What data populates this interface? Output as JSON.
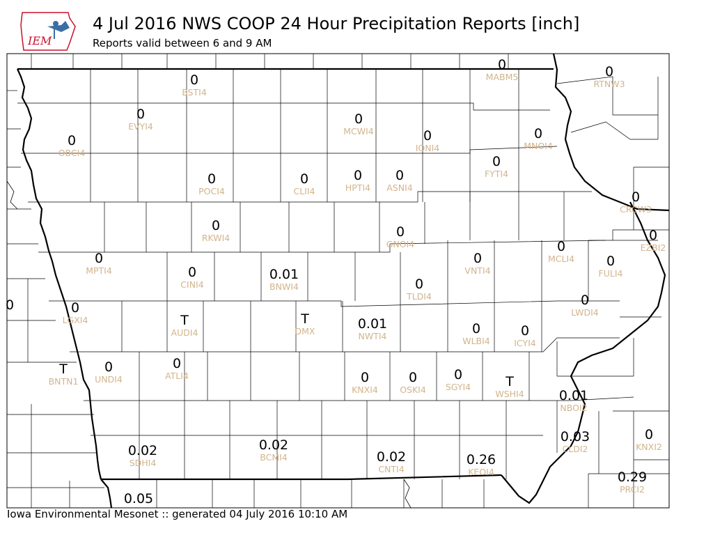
{
  "header": {
    "title": "4 Jul 2016 NWS COOP 24 Hour Precipitation Reports [inch]",
    "subtitle": "Reports valid between 6 and 9 AM"
  },
  "logo": {
    "text": "IEM"
  },
  "footer": "Iowa Environmental Mesonet :: generated 04 July 2016 10:10 AM",
  "stations": [
    {
      "id": "BSTI4",
      "value": "0"
    },
    {
      "id": "MABM5",
      "value": "0"
    },
    {
      "id": "RTNW3",
      "value": "0"
    },
    {
      "id": "EVYI4",
      "value": "0"
    },
    {
      "id": "MCWI4",
      "value": "0"
    },
    {
      "id": "IONI4",
      "value": "0"
    },
    {
      "id": "MNOI4",
      "value": "0"
    },
    {
      "id": "OBCI4",
      "value": "0"
    },
    {
      "id": "FYTI4",
      "value": "0"
    },
    {
      "id": "POCI4",
      "value": "0"
    },
    {
      "id": "CLII4",
      "value": "0"
    },
    {
      "id": "HPTI4",
      "value": "0"
    },
    {
      "id": "ASNI4",
      "value": "0"
    },
    {
      "id": "CRCW3",
      "value": "0"
    },
    {
      "id": "RKWI4",
      "value": "0"
    },
    {
      "id": "GNOI4",
      "value": "0"
    },
    {
      "id": "EZBI2",
      "value": "0"
    },
    {
      "id": "MPTI4",
      "value": "0"
    },
    {
      "id": "VNTI4",
      "value": "0"
    },
    {
      "id": "MCLI4",
      "value": "0"
    },
    {
      "id": "FULI4",
      "value": "0"
    },
    {
      "id": "CINI4",
      "value": "0"
    },
    {
      "id": "BNWI4",
      "value": "0.01"
    },
    {
      "id": "TLDI4",
      "value": "0"
    },
    {
      "id": "LWDI4",
      "value": "0"
    },
    {
      "id": "LGXI4",
      "value": "0"
    },
    {
      "id": "AUDI4",
      "value": "T"
    },
    {
      "id": "DMX",
      "value": "T"
    },
    {
      "id": "NWTI4",
      "value": "0.01"
    },
    {
      "id": "WLBI4",
      "value": "0"
    },
    {
      "id": "ICYI4",
      "value": "0"
    },
    {
      "id": "BNTN1",
      "value": "T"
    },
    {
      "id": "UNDI4",
      "value": "0"
    },
    {
      "id": "ATLI4",
      "value": "0"
    },
    {
      "id": "KNXI4",
      "value": "0"
    },
    {
      "id": "OSKI4",
      "value": "0"
    },
    {
      "id": "SGYI4",
      "value": "0"
    },
    {
      "id": "WSHI4",
      "value": "T"
    },
    {
      "id": "NBOI2",
      "value": "0.01"
    },
    {
      "id": "SDHI4",
      "value": "0.02"
    },
    {
      "id": "BCMI4",
      "value": "0.02"
    },
    {
      "id": "CNTI4",
      "value": "0.02"
    },
    {
      "id": "KEOI4",
      "value": "0.26"
    },
    {
      "id": "CLDI2",
      "value": "0.03"
    },
    {
      "id": "KNXI2",
      "value": "0"
    },
    {
      "id": "PRCI2",
      "value": "0.29"
    },
    {
      "id": "",
      "value": "0.05"
    },
    {
      "id": "",
      "value": "0"
    }
  ],
  "colors": {
    "value_text": "#000000",
    "station_id_text": "#d2b48c",
    "county_lines": "#000000",
    "state_lines": "#000000",
    "logo_red": "#c8102e",
    "logo_blue": "#3a6ea5"
  }
}
